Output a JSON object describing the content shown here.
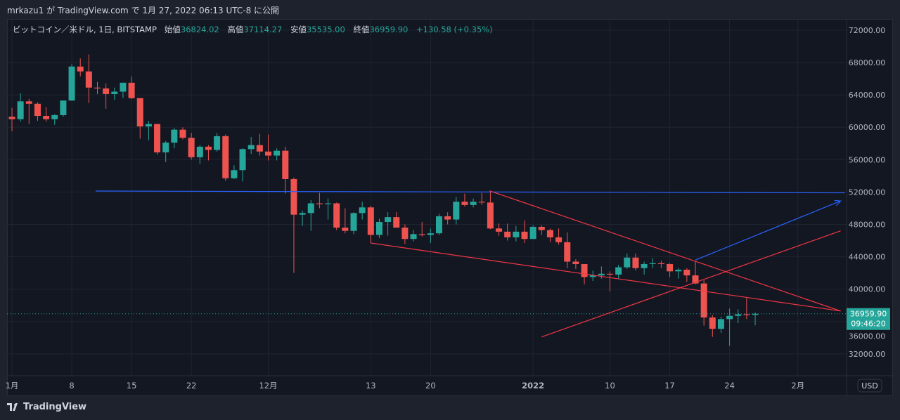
{
  "header": {
    "title": "mrkazu1 が TradingView.com で 1月 27, 2022 06:13 UTC-8 に公開"
  },
  "legend": {
    "symbol": "ビットコイン／米ドル, 1日, BITSTAMP",
    "open_label": "始値",
    "open": "36824.02",
    "high_label": "高値",
    "high": "37114.27",
    "low_label": "安値",
    "low": "35535.00",
    "close_label": "終値",
    "close": "36959.90",
    "change": "+130.58 (+0.35%)"
  },
  "axis": {
    "currency": "USD",
    "last_price": "36959.90",
    "countdown": "09:46:20"
  },
  "footer": {
    "brand": "TradingView"
  },
  "colors": {
    "up": "#26a69a",
    "down": "#ef5350",
    "bg": "#131722",
    "trend_red": "#f23645",
    "trend_blue": "#2962ff"
  },
  "chart_data": {
    "type": "candlestick",
    "title": "ビットコイン／米ドル, 1日, BITSTAMP",
    "ylim": [
      30000,
      72000
    ],
    "y_ticks": [
      "72000.00",
      "68000.00",
      "64000.00",
      "60000.00",
      "56000.00",
      "52000.00",
      "48000.00",
      "44000.00",
      "40000.00",
      "36000.00",
      "32000.00"
    ],
    "y_tick_values": [
      72000,
      68000,
      64000,
      60000,
      56000,
      52000,
      48000,
      44000,
      40000,
      36000,
      32000
    ],
    "x_ticks": [
      {
        "i": 0,
        "label": "1月"
      },
      {
        "i": 7,
        "label": "8"
      },
      {
        "i": 14,
        "label": "15"
      },
      {
        "i": 21,
        "label": "22"
      },
      {
        "i": 30,
        "label": "12月"
      },
      {
        "i": 42,
        "label": "13"
      },
      {
        "i": 49,
        "label": "20"
      },
      {
        "i": 61,
        "label": "2022"
      },
      {
        "i": 70,
        "label": "10"
      },
      {
        "i": 77,
        "label": "17"
      },
      {
        "i": 84,
        "label": "24"
      },
      {
        "i": 92,
        "label": "2月"
      }
    ],
    "x_range": [
      -0.2,
      97.5
    ],
    "ohlc": [
      [
        61300,
        62400,
        59500,
        61000
      ],
      [
        61000,
        64200,
        60700,
        63200
      ],
      [
        63200,
        63500,
        60400,
        62900
      ],
      [
        62900,
        63100,
        60800,
        61400
      ],
      [
        61400,
        62500,
        60700,
        61000
      ],
      [
        61000,
        61600,
        60300,
        61500
      ],
      [
        61500,
        63300,
        61300,
        63300
      ],
      [
        63300,
        67800,
        63300,
        67500
      ],
      [
        67500,
        68500,
        66300,
        66900
      ],
      [
        66900,
        69000,
        63000,
        64900
      ],
      [
        64900,
        65600,
        64100,
        64800
      ],
      [
        64800,
        65400,
        62300,
        64100
      ],
      [
        64100,
        64900,
        63400,
        64400
      ],
      [
        64400,
        65500,
        63600,
        65500
      ],
      [
        65500,
        66300,
        63500,
        63600
      ],
      [
        63600,
        63600,
        58600,
        60100
      ],
      [
        60100,
        60800,
        58400,
        60400
      ],
      [
        60400,
        60400,
        56600,
        56900
      ],
      [
        56900,
        58300,
        55700,
        58100
      ],
      [
        58100,
        59900,
        57400,
        59700
      ],
      [
        59700,
        60000,
        58500,
        58700
      ],
      [
        58700,
        59300,
        56000,
        56300
      ],
      [
        56300,
        57800,
        55500,
        57600
      ],
      [
        57600,
        57800,
        55900,
        57200
      ],
      [
        57200,
        59300,
        57000,
        58900
      ],
      [
        58900,
        59100,
        53400,
        53700
      ],
      [
        53700,
        55300,
        53600,
        54700
      ],
      [
        54700,
        57400,
        53300,
        57300
      ],
      [
        57300,
        58800,
        56700,
        57800
      ],
      [
        57800,
        59200,
        56500,
        57000
      ],
      [
        57000,
        59100,
        55900,
        56500
      ],
      [
        56500,
        57400,
        55900,
        57100
      ],
      [
        57100,
        57600,
        51800,
        53600
      ],
      [
        53600,
        53800,
        42000,
        49200
      ],
      [
        49200,
        49700,
        47800,
        49400
      ],
      [
        49400,
        51000,
        47200,
        50600
      ],
      [
        50600,
        51900,
        50000,
        50500
      ],
      [
        50500,
        51200,
        48600,
        50600
      ],
      [
        50600,
        50700,
        47300,
        47600
      ],
      [
        47600,
        50000,
        46900,
        47200
      ],
      [
        47200,
        49500,
        46800,
        49400
      ],
      [
        49400,
        50800,
        48600,
        50100
      ],
      [
        50100,
        50300,
        45700,
        46700
      ],
      [
        46700,
        48700,
        46300,
        48300
      ],
      [
        48300,
        49500,
        46600,
        48900
      ],
      [
        48900,
        49500,
        47600,
        47600
      ],
      [
        47600,
        48000,
        45600,
        46200
      ],
      [
        46200,
        47300,
        45900,
        46800
      ],
      [
        46800,
        48300,
        46500,
        46700
      ],
      [
        46700,
        47500,
        45700,
        46900
      ],
      [
        46900,
        49300,
        46700,
        49000
      ],
      [
        49000,
        49500,
        48000,
        48600
      ],
      [
        48600,
        51400,
        48000,
        50800
      ],
      [
        50800,
        51800,
        50200,
        50400
      ],
      [
        50400,
        51200,
        50100,
        50800
      ],
      [
        50800,
        51900,
        50400,
        50700
      ],
      [
        50700,
        52100,
        47400,
        47500
      ],
      [
        47500,
        48100,
        46600,
        47100
      ],
      [
        47100,
        48100,
        46000,
        46400
      ],
      [
        46400,
        47800,
        45900,
        47100
      ],
      [
        47100,
        48500,
        45700,
        46200
      ],
      [
        46200,
        47900,
        46200,
        47700
      ],
      [
        47700,
        47900,
        46700,
        47300
      ],
      [
        47300,
        47500,
        45800,
        46400
      ],
      [
        46400,
        47500,
        45500,
        45800
      ],
      [
        45800,
        47000,
        42600,
        43400
      ],
      [
        43400,
        43700,
        42500,
        43100
      ],
      [
        43100,
        43100,
        40600,
        41500
      ],
      [
        41500,
        42300,
        41000,
        41700
      ],
      [
        41700,
        42800,
        41300,
        41900
      ],
      [
        41900,
        42200,
        39700,
        41800
      ],
      [
        41800,
        43000,
        41300,
        42700
      ],
      [
        42700,
        44400,
        42500,
        43900
      ],
      [
        43900,
        44400,
        42300,
        42600
      ],
      [
        42600,
        43400,
        41800,
        43100
      ],
      [
        43100,
        43800,
        42600,
        43200
      ],
      [
        43200,
        43500,
        42600,
        43100
      ],
      [
        43100,
        43200,
        41500,
        42200
      ],
      [
        42200,
        42600,
        41300,
        42400
      ],
      [
        42400,
        42600,
        40900,
        41700
      ],
      [
        41700,
        43500,
        40600,
        40700
      ],
      [
        40700,
        41100,
        35500,
        36500
      ],
      [
        36500,
        36800,
        34100,
        35100
      ],
      [
        35100,
        36600,
        34600,
        36300
      ],
      [
        36300,
        37600,
        33000,
        36700
      ],
      [
        36700,
        37500,
        35800,
        36900
      ],
      [
        36900,
        38900,
        36300,
        36800
      ],
      [
        36824,
        37114,
        35535,
        36960
      ]
    ],
    "last_price": 36959.9,
    "drawings": [
      {
        "type": "line",
        "color": "#2962ff",
        "from": [
          9.8,
          52120
        ],
        "to": [
          97.5,
          51900
        ]
      },
      {
        "type": "line",
        "color": "#f23645",
        "from": [
          55.9,
          52150
        ],
        "to": [
          97,
          37300
        ]
      },
      {
        "type": "line",
        "color": "#f23645",
        "from": [
          42,
          45700
        ],
        "to": [
          97,
          37300
        ]
      },
      {
        "type": "line",
        "color": "#f23645",
        "from": [
          62,
          34100
        ],
        "to": [
          97,
          47200
        ]
      },
      {
        "type": "arrow",
        "color": "#2962ff",
        "from": [
          80,
          43600
        ],
        "to": [
          97,
          50900
        ]
      }
    ]
  }
}
